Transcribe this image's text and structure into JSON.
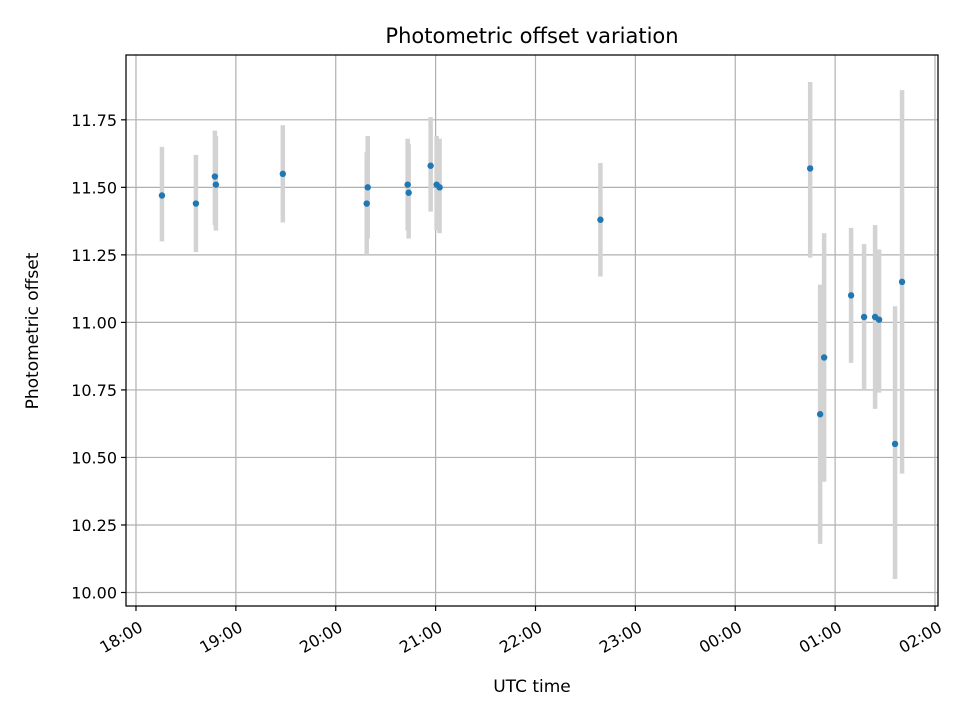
{
  "chart_data": {
    "type": "scatter",
    "title": "Photometric offset variation",
    "xlabel": "UTC time",
    "ylabel": "Photometric offset",
    "x_unit": "hours (UTC, continuing past midnight)",
    "xlim": [
      17.9,
      26.03
    ],
    "ylim": [
      9.95,
      11.99
    ],
    "grid": true,
    "x_ticks": [
      {
        "value": 18,
        "label": "18:00"
      },
      {
        "value": 19,
        "label": "19:00"
      },
      {
        "value": 20,
        "label": "20:00"
      },
      {
        "value": 21,
        "label": "21:00"
      },
      {
        "value": 22,
        "label": "22:00"
      },
      {
        "value": 23,
        "label": "23:00"
      },
      {
        "value": 24,
        "label": "00:00"
      },
      {
        "value": 25,
        "label": "01:00"
      },
      {
        "value": 26,
        "label": "02:00"
      }
    ],
    "y_ticks": [
      {
        "value": 10.0,
        "label": "10.00"
      },
      {
        "value": 10.25,
        "label": "10.25"
      },
      {
        "value": 10.5,
        "label": "10.50"
      },
      {
        "value": 10.75,
        "label": "10.75"
      },
      {
        "value": 11.0,
        "label": "11.00"
      },
      {
        "value": 11.25,
        "label": "11.25"
      },
      {
        "value": 11.5,
        "label": "11.50"
      },
      {
        "value": 11.75,
        "label": "11.75"
      }
    ],
    "point_color": "#1f77b4",
    "errorbar_color": "#d3d3d3",
    "points": [
      {
        "x": 18.26,
        "y": 11.47,
        "err_low": 11.3,
        "err_high": 11.65
      },
      {
        "x": 18.6,
        "y": 11.44,
        "err_low": 11.26,
        "err_high": 11.62
      },
      {
        "x": 18.79,
        "y": 11.54,
        "err_low": 11.36,
        "err_high": 11.71
      },
      {
        "x": 18.8,
        "y": 11.51,
        "err_low": 11.34,
        "err_high": 11.69
      },
      {
        "x": 19.47,
        "y": 11.55,
        "err_low": 11.37,
        "err_high": 11.73
      },
      {
        "x": 20.31,
        "y": 11.44,
        "err_low": 11.25,
        "err_high": 11.63
      },
      {
        "x": 20.32,
        "y": 11.5,
        "err_low": 11.31,
        "err_high": 11.69
      },
      {
        "x": 20.72,
        "y": 11.51,
        "err_low": 11.34,
        "err_high": 11.68
      },
      {
        "x": 20.73,
        "y": 11.48,
        "err_low": 11.31,
        "err_high": 11.66
      },
      {
        "x": 20.95,
        "y": 11.58,
        "err_low": 11.41,
        "err_high": 11.76
      },
      {
        "x": 21.01,
        "y": 11.51,
        "err_low": 11.34,
        "err_high": 11.69
      },
      {
        "x": 21.04,
        "y": 11.5,
        "err_low": 11.33,
        "err_high": 11.68
      },
      {
        "x": 22.65,
        "y": 11.38,
        "err_low": 11.17,
        "err_high": 11.59
      },
      {
        "x": 24.75,
        "y": 11.57,
        "err_low": 11.24,
        "err_high": 11.89
      },
      {
        "x": 24.85,
        "y": 10.66,
        "err_low": 10.18,
        "err_high": 11.14
      },
      {
        "x": 24.89,
        "y": 10.87,
        "err_low": 10.41,
        "err_high": 11.33
      },
      {
        "x": 25.16,
        "y": 11.1,
        "err_low": 10.85,
        "err_high": 11.35
      },
      {
        "x": 25.29,
        "y": 11.02,
        "err_low": 10.75,
        "err_high": 11.29
      },
      {
        "x": 25.4,
        "y": 11.02,
        "err_low": 10.68,
        "err_high": 11.36
      },
      {
        "x": 25.44,
        "y": 11.01,
        "err_low": 10.74,
        "err_high": 11.27
      },
      {
        "x": 25.6,
        "y": 10.55,
        "err_low": 10.05,
        "err_high": 11.06
      },
      {
        "x": 25.67,
        "y": 11.15,
        "err_low": 10.44,
        "err_high": 11.86
      }
    ]
  }
}
